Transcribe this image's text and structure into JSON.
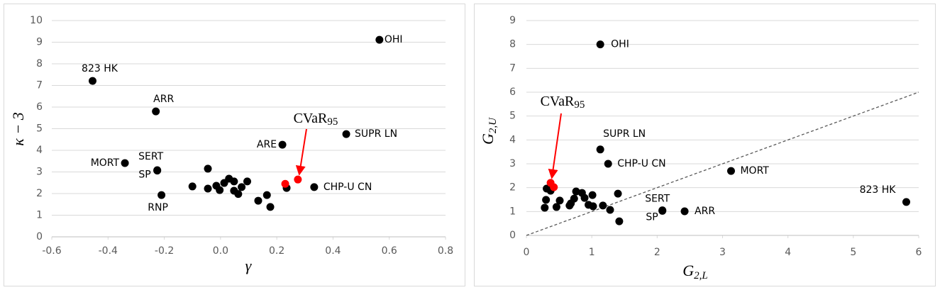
{
  "chart_data": [
    {
      "type": "scatter",
      "x_label": {
        "base": "γ"
      },
      "y_label": {
        "base": "κ − 3"
      },
      "annotation": {
        "base": "CVaR",
        "sub": "95"
      },
      "xlim": [
        -0.6,
        0.8
      ],
      "xticks": [
        -0.6,
        -0.4,
        -0.2,
        {
          "value": 0,
          "label": "0.0"
        },
        0.2,
        0.4,
        0.6,
        0.8
      ],
      "ylim": [
        0,
        10
      ],
      "yticks": [
        0,
        1,
        2,
        3,
        4,
        5,
        6,
        7,
        8,
        9,
        10
      ],
      "grid": true,
      "series": [
        {
          "color": "#000000",
          "x": [
            -0.455,
            -0.23,
            -0.34,
            -0.225,
            -0.225,
            -0.21,
            0.565,
            0.447,
            0.22,
            0.333,
            -0.1,
            -0.045,
            -0.045,
            -0.015,
            -0.003,
            0.013,
            0.03,
            0.048,
            0.048,
            0.063,
            0.075,
            0.095,
            0.134,
            0.165,
            0.177,
            0.235
          ],
          "values": [
            7.21,
            5.8,
            3.41,
            3.08,
            3.06,
            1.93,
            9.11,
            4.75,
            4.26,
            2.3,
            2.33,
            3.15,
            2.23,
            2.36,
            2.16,
            2.49,
            2.69,
            2.56,
            2.13,
            1.98,
            2.3,
            2.56,
            1.67,
            1.93,
            1.38,
            2.26
          ],
          "labels": [
            "823 HK",
            "ARR",
            "MORT",
            "SERT",
            "SP",
            "RNP",
            "OHI",
            "SUPR LN",
            "ARE",
            "CHP-U CN",
            null,
            null,
            null,
            null,
            null,
            null,
            null,
            null,
            null,
            null,
            null,
            null,
            null,
            null,
            null,
            null
          ]
        },
        {
          "color": "#ff0000",
          "x": [
            0.23,
            0.275
          ],
          "values": [
            2.45,
            2.65
          ]
        }
      ]
    },
    {
      "type": "scatter",
      "x_label": {
        "base": "G",
        "sub": "2,L"
      },
      "y_label": {
        "base": "G",
        "sub": "2,U"
      },
      "annotation": {
        "base": "CVaR",
        "sub": "95"
      },
      "xlim": [
        0,
        6
      ],
      "xticks": [
        0,
        1,
        2,
        3,
        4,
        5,
        6
      ],
      "ylim": [
        0,
        9
      ],
      "yticks": [
        0,
        1,
        2,
        3,
        4,
        5,
        6,
        7,
        8,
        9
      ],
      "grid": true,
      "diagonal": true,
      "series": [
        {
          "color": "#000000",
          "x": [
            1.13,
            1.13,
            1.25,
            3.13,
            5.81,
            2.42,
            2.08,
            2.08,
            1.42,
            1.28,
            1.4,
            1.02,
            1.01,
            0.89,
            0.85,
            0.76,
            0.73,
            0.68,
            0.66,
            0.51,
            0.46,
            0.3,
            0.28,
            0.31,
            0.37,
            1.17,
            0.95
          ],
          "values": [
            8.0,
            3.6,
            3.0,
            2.7,
            1.4,
            1.01,
            1.05,
            1.03,
            0.59,
            1.07,
            1.75,
            1.22,
            1.69,
            1.57,
            1.78,
            1.84,
            1.54,
            1.34,
            1.25,
            1.46,
            1.19,
            1.49,
            1.16,
            1.96,
            1.87,
            1.25,
            1.28
          ],
          "labels": [
            "OHI",
            "SUPR LN",
            "CHP-U CN",
            "MORT",
            "823 HK",
            "ARR",
            "SERT",
            "SP",
            null,
            null,
            null,
            null,
            null,
            null,
            null,
            null,
            null,
            null,
            null,
            null,
            null,
            null,
            null,
            null,
            null,
            null,
            null
          ]
        },
        {
          "color": "#ff0000",
          "x": [
            0.37,
            0.42
          ],
          "values": [
            2.2,
            2.02
          ]
        }
      ]
    }
  ]
}
